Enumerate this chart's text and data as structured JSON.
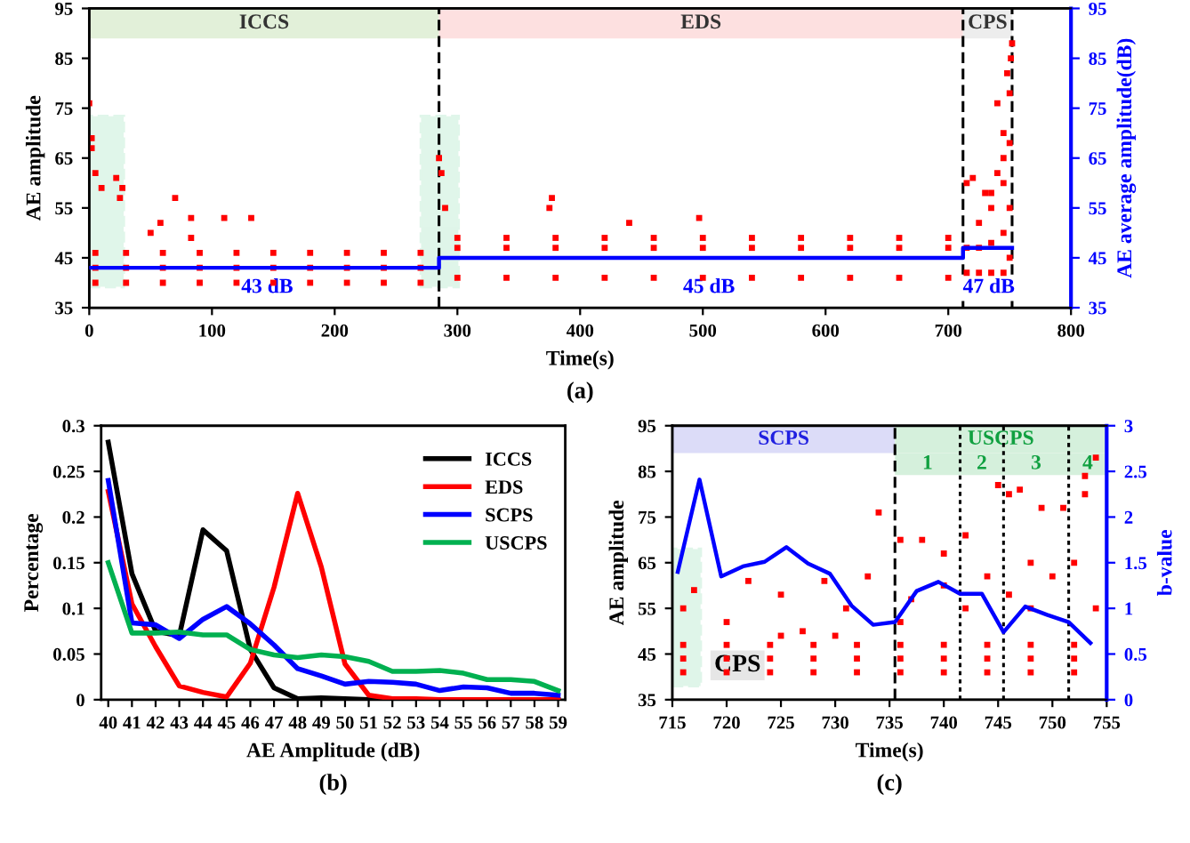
{
  "chart_data": [
    {
      "type": "scatter",
      "xlabel": "Time(s)",
      "ylabel": "AE amplitude",
      "y2label": "AE average amplitude(dB)",
      "xlim": [
        0,
        800
      ],
      "xticks": [
        0,
        100,
        200,
        300,
        400,
        500,
        600,
        700,
        800
      ],
      "ylim": [
        35,
        95
      ],
      "yticks": [
        35,
        45,
        55,
        65,
        75,
        85,
        95
      ],
      "y2lim": [
        35,
        95
      ],
      "y2ticks": [
        35,
        45,
        55,
        65,
        75,
        85,
        95
      ],
      "marker": "square",
      "legend": false,
      "grid": false,
      "series": [
        {
          "type": "scatter",
          "color": "#ff0000",
          "x": [
            0,
            2,
            2,
            5,
            10,
            22,
            25,
            27,
            70,
            83,
            110,
            132,
            50,
            58,
            83,
            285,
            287,
            290,
            375,
            377,
            440,
            497,
            715,
            720,
            730,
            740,
            745,
            748,
            750,
            752,
            751,
            745,
            740,
            735,
            5,
            30,
            60,
            90,
            120,
            150,
            180,
            210,
            240,
            270,
            5,
            30,
            60,
            90,
            120,
            150,
            180,
            210,
            240,
            270,
            5,
            30,
            60,
            90,
            120,
            150,
            180,
            210,
            240,
            270,
            300,
            340,
            380,
            420,
            460,
            500,
            540,
            580,
            620,
            660,
            700,
            300,
            340,
            380,
            420,
            460,
            500,
            540,
            580,
            620,
            660,
            700,
            300,
            340,
            380,
            420,
            460,
            500,
            540,
            580,
            620,
            660,
            700,
            715,
            715,
            725,
            725,
            725,
            735,
            735,
            735,
            745,
            745,
            745,
            750,
            750,
            750
          ],
          "values": [
            76,
            69,
            67,
            62,
            59,
            61,
            57,
            59,
            57,
            53,
            53,
            53,
            50,
            52,
            49,
            65,
            62,
            55,
            55,
            57,
            52,
            53,
            60,
            61,
            58,
            76,
            70,
            82,
            78,
            88,
            85,
            65,
            62,
            58,
            40,
            40,
            40,
            40,
            40,
            40,
            40,
            40,
            40,
            40,
            43,
            43,
            43,
            43,
            43,
            43,
            43,
            43,
            43,
            43,
            46,
            46,
            46,
            46,
            46,
            46,
            46,
            46,
            46,
            46,
            41,
            41,
            41,
            41,
            41,
            41,
            41,
            41,
            41,
            41,
            41,
            47,
            47,
            47,
            47,
            47,
            47,
            47,
            47,
            47,
            47,
            47,
            49,
            49,
            49,
            49,
            49,
            49,
            49,
            49,
            49,
            49,
            49,
            42,
            47,
            42,
            47,
            52,
            42,
            48,
            55,
            42,
            50,
            60,
            45,
            55,
            68
          ]
        },
        {
          "type": "line",
          "axis": "y2",
          "marker": "none",
          "color": "#0000ff",
          "x": [
            0,
            285,
            285,
            712,
            712,
            752
          ],
          "values": [
            43,
            43,
            45,
            45,
            47,
            47
          ]
        }
      ],
      "bands": [
        {
          "axis": "x",
          "from": 0,
          "to": 285,
          "label": "ICCS",
          "color": "#e2f0d9"
        },
        {
          "axis": "x",
          "from": 285,
          "to": 712,
          "label": "EDS",
          "color": "#fde0e0"
        },
        {
          "axis": "x",
          "from": 712,
          "to": 752,
          "label": "CPS",
          "color": "#ededed"
        }
      ],
      "ref_lines": [
        {
          "axis": "x",
          "value": 285,
          "line_style": "dashed",
          "color": "#000000"
        },
        {
          "axis": "x",
          "value": 712,
          "line_style": "dashed",
          "color": "#000000"
        },
        {
          "axis": "x",
          "value": 752,
          "line_style": "dashed",
          "color": "#000000"
        }
      ],
      "annotations": [
        {
          "text": "43 dB",
          "x": 145,
          "y": 39
        },
        {
          "text": "45 dB",
          "x": 505,
          "y": 39
        },
        {
          "text": "47 dB",
          "x": 733,
          "y": 39
        },
        "(a)"
      ]
    },
    {
      "type": "line",
      "xlabel": "AE Amplitude (dB)",
      "ylabel": "Percentage",
      "categories": [
        "40",
        "41",
        "42",
        "43",
        "44",
        "45",
        "46",
        "47",
        "48",
        "49",
        "50",
        "51",
        "52",
        "53",
        "54",
        "55",
        "56",
        "57",
        "58",
        "59"
      ],
      "ylim": [
        0,
        0.3
      ],
      "yticks": [
        0,
        0.05,
        0.1,
        0.15,
        0.2,
        0.25,
        0.3
      ],
      "legend": "top right",
      "grid": false,
      "marker": "none",
      "series": [
        {
          "name": "ICCS",
          "color": "#000000",
          "values": [
            0.282,
            0.138,
            0.075,
            0.07,
            0.186,
            0.163,
            0.055,
            0.013,
            0.001,
            0.002,
            0.001,
            0,
            0,
            0,
            0,
            0,
            0,
            0,
            0,
            0
          ]
        },
        {
          "name": "EDS",
          "color": "#ff0000",
          "values": [
            0.228,
            0.105,
            0.058,
            0.015,
            0.008,
            0.003,
            0.04,
            0.123,
            0.226,
            0.145,
            0.039,
            0.005,
            0.001,
            0.001,
            0,
            0,
            0,
            0,
            0,
            0
          ]
        },
        {
          "name": "SCPS",
          "color": "#0000ff",
          "values": [
            0.24,
            0.084,
            0.082,
            0.067,
            0.088,
            0.102,
            0.083,
            0.06,
            0.034,
            0.026,
            0.017,
            0.02,
            0.019,
            0.017,
            0.01,
            0.014,
            0.013,
            0.007,
            0.007,
            0.005
          ]
        },
        {
          "name": "USCPS",
          "color": "#00b050",
          "values": [
            0.15,
            0.073,
            0.073,
            0.074,
            0.071,
            0.071,
            0.055,
            0.049,
            0.046,
            0.049,
            0.047,
            0.042,
            0.031,
            0.031,
            0.032,
            0.029,
            0.022,
            0.022,
            0.02,
            0.01
          ]
        }
      ],
      "annotations": [
        "(b)"
      ]
    },
    {
      "type": "scatter",
      "xlabel": "Time(s)",
      "ylabel": "AE amplitude",
      "y2label": "b-value",
      "xlim": [
        715,
        755
      ],
      "xticks": [
        715,
        720,
        725,
        730,
        735,
        740,
        745,
        750,
        755
      ],
      "ylim": [
        35,
        95
      ],
      "yticks": [
        35,
        45,
        55,
        65,
        75,
        85,
        95
      ],
      "y2lim": [
        0,
        3
      ],
      "y2ticks": [
        0,
        0.5,
        1,
        1.5,
        2,
        2.5,
        3
      ],
      "marker": "square",
      "legend": false,
      "grid": false,
      "series": [
        {
          "type": "scatter",
          "color": "#ff0000",
          "x": [
            716,
            720,
            724,
            728,
            732,
            736,
            740,
            744,
            748,
            752,
            716,
            720,
            724,
            728,
            732,
            736,
            740,
            744,
            748,
            752,
            716,
            720,
            724,
            728,
            732,
            736,
            740,
            744,
            748,
            752,
            717,
            716,
            722,
            725,
            729,
            733,
            734,
            736,
            738,
            740,
            742,
            745,
            746,
            747,
            749,
            751,
            753,
            754,
            753,
            748,
            744,
            740,
            737,
            746,
            750,
            752,
            720,
            727,
            731,
            736,
            742,
            748,
            754,
            725,
            730
          ],
          "values": [
            41,
            41,
            41,
            41,
            41,
            41,
            41,
            41,
            41,
            41,
            44,
            44,
            44,
            44,
            44,
            44,
            44,
            44,
            44,
            44,
            47,
            47,
            47,
            47,
            47,
            47,
            47,
            47,
            47,
            47,
            59,
            55,
            61,
            58,
            61,
            62,
            76,
            70,
            70,
            67,
            71,
            82,
            80,
            81,
            77,
            77,
            84,
            88,
            80,
            65,
            62,
            60,
            57,
            58,
            62,
            65,
            52,
            50,
            55,
            52,
            55,
            55,
            55,
            49,
            49
          ]
        },
        {
          "type": "line",
          "axis": "y2",
          "marker": "none",
          "color": "#0000ff",
          "x": [
            715.5,
            717.5,
            719.5,
            721.5,
            723.5,
            725.5,
            727.5,
            729.5,
            731.5,
            733.5,
            735.5,
            737.5,
            739.5,
            741.5,
            743.5,
            745.5,
            747.5,
            749.5,
            751.5,
            753.5
          ],
          "values": [
            1.4,
            2.41,
            1.35,
            1.46,
            1.51,
            1.67,
            1.49,
            1.38,
            1.03,
            0.82,
            0.85,
            1.19,
            1.29,
            1.16,
            1.16,
            0.74,
            1.02,
            0.93,
            0.85,
            0.62
          ]
        }
      ],
      "bands": [
        {
          "axis": "x",
          "from": 715,
          "to": 735.5,
          "label": "SCPS",
          "color": "#dcdcf8"
        },
        {
          "axis": "x",
          "from": 735.5,
          "to": 755,
          "label": "USCPS",
          "color": "#d5f0dc"
        },
        {
          "axis": "x",
          "from": 735.5,
          "to": 741.5,
          "label": "1",
          "color": "#d5f0dc"
        },
        {
          "axis": "x",
          "from": 741.5,
          "to": 745.5,
          "label": "2",
          "color": "#d5f0dc"
        },
        {
          "axis": "x",
          "from": 745.5,
          "to": 751.5,
          "label": "3",
          "color": "#d5f0dc"
        },
        {
          "axis": "x",
          "from": 751.5,
          "to": 755,
          "label": "4",
          "color": "#d5f0dc"
        }
      ],
      "ref_lines": [
        {
          "axis": "x",
          "value": 735.5,
          "line_style": "dashed",
          "color": "#000000"
        },
        {
          "axis": "x",
          "value": 741.5,
          "line_style": "dotted",
          "color": "#000000"
        },
        {
          "axis": "x",
          "value": 745.5,
          "line_style": "dotted",
          "color": "#000000"
        },
        {
          "axis": "x",
          "value": 751.5,
          "line_style": "dotted",
          "color": "#000000"
        }
      ],
      "annotations": [
        {
          "text": "CPS",
          "x": 721,
          "y": 42.5
        },
        "(c)"
      ]
    }
  ]
}
